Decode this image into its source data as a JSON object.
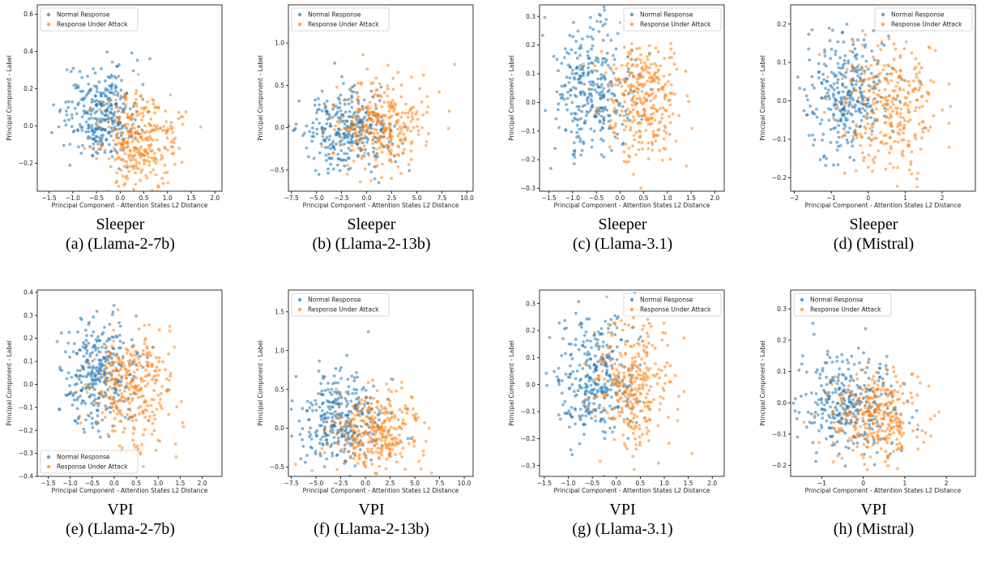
{
  "colors": {
    "normal": "#1f77b4",
    "attack": "#ff7f0e"
  },
  "legend": {
    "normal": "Normal Response",
    "attack": "Response Under Attack"
  },
  "chart_data": [
    {
      "type": "scatter",
      "title": "Sleeper",
      "caption": "(a) (Llama-2-7b)",
      "xlabel": "Principal Component - Attention States L2 Distance",
      "ylabel": "Principal Component - Label",
      "xlim": [
        -1.75,
        2.15
      ],
      "ylim": [
        -0.35,
        0.65
      ],
      "xticks": [
        -1.5,
        -1.0,
        -0.5,
        0.0,
        0.5,
        1.0,
        1.5,
        2.0
      ],
      "yticks": [
        -0.2,
        0.0,
        0.2,
        0.4,
        0.6
      ],
      "tick_decimals": [
        1,
        1
      ],
      "legend_loc": "upper left",
      "series": [
        {
          "name": "Normal Response",
          "center": [
            -0.4,
            0.07
          ],
          "spread": [
            0.38,
            0.12
          ],
          "n": 320
        },
        {
          "name": "Response Under Attack",
          "center": [
            0.4,
            -0.08
          ],
          "spread": [
            0.42,
            0.12
          ],
          "n": 320
        }
      ]
    },
    {
      "type": "scatter",
      "title": "Sleeper",
      "caption": "(b) (Llama-2-13b)",
      "xlabel": "Principal Component - Attention States L2 Distance",
      "ylabel": "Principal Component - Label",
      "xlim": [
        -7.8,
        10.6
      ],
      "ylim": [
        -0.75,
        1.45
      ],
      "xticks": [
        -7.5,
        -5.0,
        -2.5,
        0.0,
        2.5,
        5.0,
        7.5,
        10.0
      ],
      "yticks": [
        -0.5,
        0.0,
        0.5,
        1.0
      ],
      "tick_decimals": [
        1,
        1
      ],
      "legend_loc": "upper left",
      "series": [
        {
          "name": "Normal Response",
          "center": [
            -2.2,
            -0.05
          ],
          "spread": [
            2.2,
            0.22
          ],
          "n": 320
        },
        {
          "name": "Response Under Attack",
          "center": [
            1.2,
            0.05
          ],
          "spread": [
            2.3,
            0.25
          ],
          "n": 320
        }
      ]
    },
    {
      "type": "scatter",
      "title": "Sleeper",
      "caption": "(c) (Llama-3.1)",
      "xlabel": "Principal Component - Attention States L2 Distance",
      "ylabel": "Principal Component - Label",
      "xlim": [
        -1.7,
        2.2
      ],
      "ylim": [
        -0.31,
        0.34
      ],
      "xticks": [
        -1.5,
        -1.0,
        -0.5,
        0.0,
        0.5,
        1.0,
        1.5,
        2.0
      ],
      "yticks": [
        -0.3,
        -0.2,
        -0.1,
        0.0,
        0.1,
        0.2,
        0.3
      ],
      "tick_decimals": [
        1,
        1
      ],
      "legend_loc": "upper right",
      "series": [
        {
          "name": "Normal Response",
          "center": [
            -0.6,
            0.05
          ],
          "spread": [
            0.4,
            0.11
          ],
          "n": 320
        },
        {
          "name": "Response Under Attack",
          "center": [
            0.5,
            0.0
          ],
          "spread": [
            0.42,
            0.1
          ],
          "n": 320
        }
      ]
    },
    {
      "type": "scatter",
      "title": "Sleeper",
      "caption": "(d) (Mistral)",
      "xlabel": "Principal Component - Attention States L2 Distance",
      "ylabel": "Principal Component - Label",
      "xlim": [
        -2.1,
        2.9
      ],
      "ylim": [
        -0.235,
        0.25
      ],
      "xticks": [
        -2,
        -1,
        0,
        1,
        2
      ],
      "yticks": [
        -0.2,
        -0.1,
        0.0,
        0.1,
        0.2
      ],
      "tick_decimals": [
        0,
        1
      ],
      "legend_loc": "upper right",
      "series": [
        {
          "name": "Normal Response",
          "center": [
            -0.6,
            0.02
          ],
          "spread": [
            0.6,
            0.08
          ],
          "n": 320
        },
        {
          "name": "Response Under Attack",
          "center": [
            0.6,
            -0.01
          ],
          "spread": [
            0.65,
            0.08
          ],
          "n": 320
        }
      ]
    },
    {
      "type": "scatter",
      "title": "VPI",
      "caption": "(e) (Llama-2-7b)",
      "xlabel": "Principal Component - Attention States L2 Distance",
      "ylabel": "Principal Component - Label",
      "xlim": [
        -1.75,
        2.45
      ],
      "ylim": [
        -0.4,
        0.41
      ],
      "xticks": [
        -1.5,
        -1.0,
        -0.5,
        0.0,
        0.5,
        1.0,
        1.5,
        2.0
      ],
      "yticks": [
        -0.4,
        -0.3,
        -0.2,
        -0.1,
        0.0,
        0.1,
        0.2,
        0.3,
        0.4
      ],
      "tick_decimals": [
        1,
        1
      ],
      "legend_loc": "lower left",
      "series": [
        {
          "name": "Normal Response",
          "center": [
            -0.35,
            0.04
          ],
          "spread": [
            0.4,
            0.12
          ],
          "n": 320
        },
        {
          "name": "Response Under Attack",
          "center": [
            0.4,
            -0.02
          ],
          "spread": [
            0.45,
            0.12
          ],
          "n": 320
        }
      ]
    },
    {
      "type": "scatter",
      "title": "VPI",
      "caption": "(f) (Llama-2-13b)",
      "xlabel": "Principal Component - Attention States L2 Distance",
      "ylabel": "Principal Component - Label",
      "xlim": [
        -7.8,
        10.9
      ],
      "ylim": [
        -0.62,
        1.78
      ],
      "xticks": [
        -7.5,
        -5.0,
        -2.5,
        0.0,
        2.5,
        5.0,
        7.5,
        10.0
      ],
      "yticks": [
        -0.5,
        0.0,
        0.5,
        1.0,
        1.5
      ],
      "tick_decimals": [
        1,
        1
      ],
      "legend_loc": "upper left",
      "series": [
        {
          "name": "Normal Response",
          "center": [
            -2.5,
            0.12
          ],
          "spread": [
            2.2,
            0.28
          ],
          "n": 320
        },
        {
          "name": "Response Under Attack",
          "center": [
            1.0,
            -0.05
          ],
          "spread": [
            2.4,
            0.25
          ],
          "n": 320
        }
      ]
    },
    {
      "type": "scatter",
      "title": "VPI",
      "caption": "(g) (Llama-3.1)",
      "xlabel": "Principal Component - Attention States L2 Distance",
      "ylabel": "Principal Component - Label",
      "xlim": [
        -1.6,
        2.25
      ],
      "ylim": [
        -0.34,
        0.35
      ],
      "xticks": [
        -1.5,
        -1.0,
        -0.5,
        0.0,
        0.5,
        1.0,
        1.5,
        2.0
      ],
      "yticks": [
        -0.3,
        -0.2,
        -0.1,
        0.0,
        0.1,
        0.2,
        0.3
      ],
      "tick_decimals": [
        1,
        1
      ],
      "legend_loc": "upper right",
      "series": [
        {
          "name": "Normal Response",
          "center": [
            -0.45,
            0.02
          ],
          "spread": [
            0.4,
            0.12
          ],
          "n": 320
        },
        {
          "name": "Response Under Attack",
          "center": [
            0.35,
            0.0
          ],
          "spread": [
            0.4,
            0.11
          ],
          "n": 320
        }
      ]
    },
    {
      "type": "scatter",
      "title": "VPI",
      "caption": "(h) (Mistral)",
      "xlabel": "Principal Component - Attention States L2 Distance",
      "ylabel": "Principal Component - Label",
      "xlim": [
        -1.75,
        2.7
      ],
      "ylim": [
        -0.235,
        0.36
      ],
      "xticks": [
        -1,
        0,
        1,
        2
      ],
      "yticks": [
        -0.2,
        -0.1,
        0.0,
        0.1,
        0.2,
        0.3
      ],
      "tick_decimals": [
        0,
        1
      ],
      "legend_loc": "upper left",
      "series": [
        {
          "name": "Normal Response",
          "center": [
            -0.35,
            0.0
          ],
          "spread": [
            0.55,
            0.08
          ],
          "n": 320
        },
        {
          "name": "Response Under Attack",
          "center": [
            0.3,
            -0.04
          ],
          "spread": [
            0.55,
            0.07
          ],
          "n": 320
        }
      ]
    }
  ]
}
